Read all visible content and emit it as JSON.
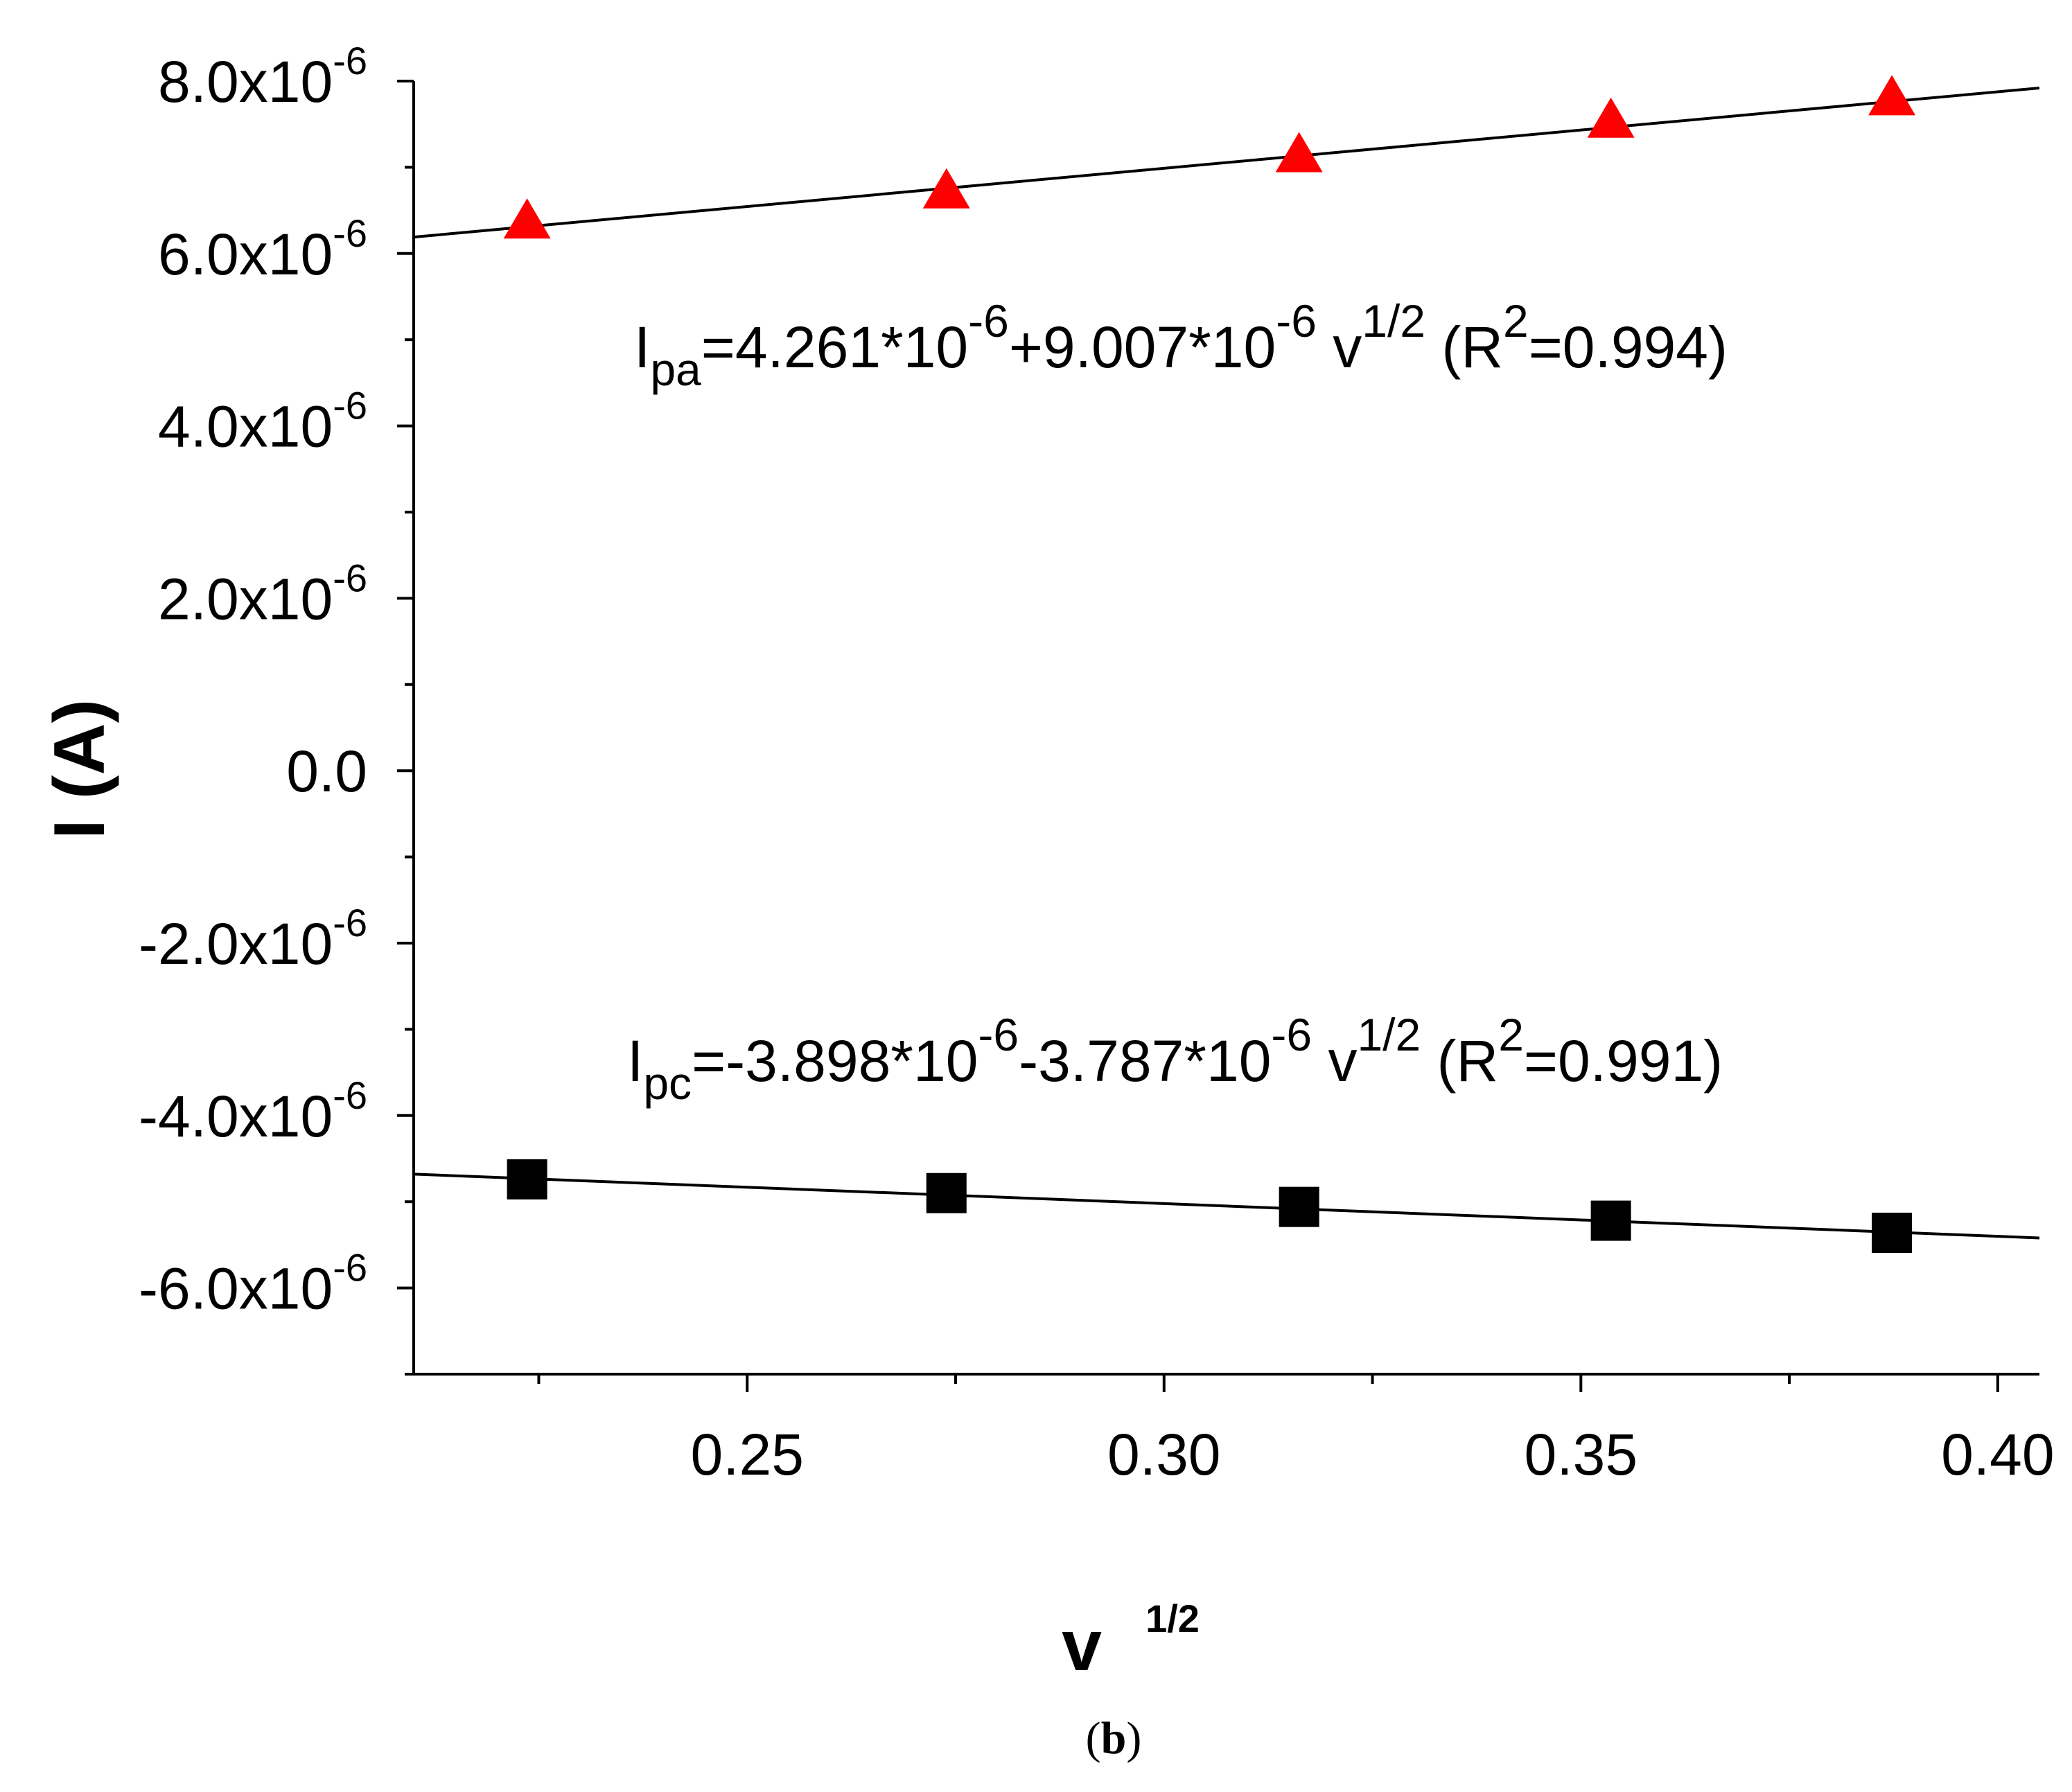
{
  "chart_data": {
    "type": "scatter",
    "xlabel": "v",
    "xlabel_sup": "1/2",
    "ylabel": "I (A)",
    "xlim": [
      0.21,
      0.405
    ],
    "ylim": [
      -7e-06,
      8e-06
    ],
    "x_ticks": [
      0.25,
      0.3,
      0.35,
      0.4
    ],
    "x_tick_labels": [
      "0.25",
      "0.30",
      "0.35",
      "0.40"
    ],
    "y_ticks": [
      8e-06,
      6e-06,
      4e-06,
      2e-06,
      0.0,
      -2e-06,
      -4e-06,
      -6e-06
    ],
    "y_tick_labels": [
      {
        "mant": "8.0x10",
        "exp": "-6"
      },
      {
        "mant": "6.0x10",
        "exp": "-6"
      },
      {
        "mant": "4.0x10",
        "exp": "-6"
      },
      {
        "mant": "2.0x10",
        "exp": "-6"
      },
      {
        "mant": "0.0",
        "exp": ""
      },
      {
        "mant": "-2.0x10",
        "exp": "-6"
      },
      {
        "mant": "-4.0x10",
        "exp": "-6"
      },
      {
        "mant": "-6.0x10",
        "exp": "-6"
      }
    ],
    "grid": false,
    "series": [
      {
        "marker": "triangle",
        "color": "#ff0000",
        "x": [
          0.2236,
          0.2739,
          0.3162,
          0.3536,
          0.3873
        ],
        "y": [
          6.35e-06,
          6.7e-06,
          7.12e-06,
          7.52e-06,
          7.78e-06
        ],
        "fit": {
          "x": [
            0.21,
            0.405
          ],
          "y": [
            6.19e-06,
            7.92e-06
          ]
        }
      },
      {
        "marker": "square",
        "color": "#000000",
        "x": [
          0.2236,
          0.2739,
          0.3162,
          0.3536,
          0.3873
        ],
        "y": [
          -4.74e-06,
          -4.9e-06,
          -5.06e-06,
          -5.22e-06,
          -5.36e-06
        ],
        "fit": {
          "x": [
            0.21,
            0.405
          ],
          "y": [
            -4.68e-06,
            -5.42e-06
          ]
        }
      }
    ],
    "annotations": [
      {
        "parts": [
          {
            "t": "I",
            "s": "n"
          },
          {
            "t": "pa",
            "s": "sub"
          },
          {
            "t": "=4.261*10",
            "s": "n"
          },
          {
            "t": "-6",
            "s": "sup"
          },
          {
            "t": "+9.007*10",
            "s": "n"
          },
          {
            "t": "-6",
            "s": "sup"
          },
          {
            "t": " v",
            "s": "n"
          },
          {
            "t": "1/2",
            "s": "sup"
          },
          {
            "t": "  (R",
            "s": "n"
          },
          {
            "t": "2",
            "s": "sup"
          },
          {
            "t": "=0.994)",
            "s": "n"
          }
        ]
      },
      {
        "parts": [
          {
            "t": "I",
            "s": "n"
          },
          {
            "t": "pc",
            "s": "sub"
          },
          {
            "t": "=-3.898*10",
            "s": "n"
          },
          {
            "t": "-6",
            "s": "sup"
          },
          {
            "t": "-3.787*10",
            "s": "n"
          },
          {
            "t": "-6",
            "s": "sup"
          },
          {
            "t": " v",
            "s": "n"
          },
          {
            "t": "1/2",
            "s": "sup"
          },
          {
            "t": " (R",
            "s": "n"
          },
          {
            "t": "2",
            "s": "sup"
          },
          {
            "t": "=0.991)",
            "s": "n"
          }
        ]
      }
    ]
  },
  "caption": {
    "open": "(",
    "letter": "b",
    "close": ")"
  }
}
